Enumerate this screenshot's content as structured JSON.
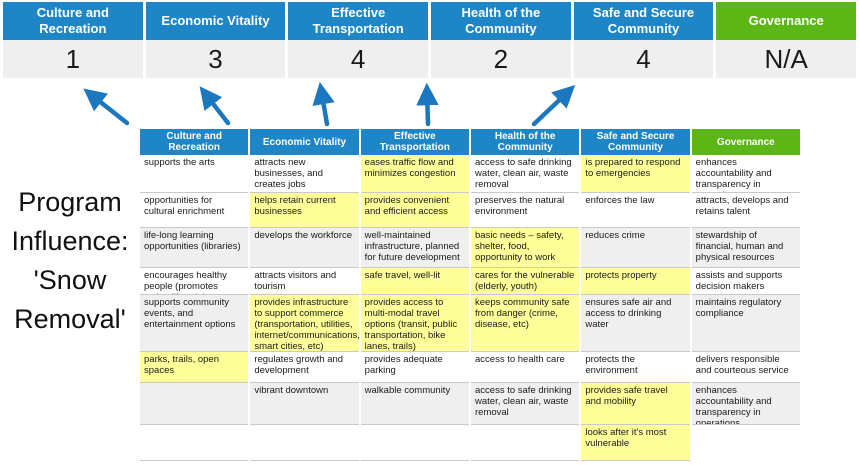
{
  "program_influence_label": "Program\nInfluence:\n'Snow\nRemoval'",
  "colors": {
    "header_blue": "#1E86C7",
    "header_green": "#5CB616",
    "highlight_yellow": "#FFFF99",
    "row_band_gray": "#EFEFEF",
    "score_row_gray": "#EFEFEF",
    "arrow_blue": "#1B77BE",
    "grid_border_gray": "#C9C9C9"
  },
  "scoreboard": {
    "columns": [
      {
        "label": "Culture and Recreation",
        "score": "1",
        "theme": "blue"
      },
      {
        "label": "Economic Vitality",
        "score": "3",
        "theme": "blue"
      },
      {
        "label": "Effective Transportation",
        "score": "4",
        "theme": "blue"
      },
      {
        "label": "Health of the Community",
        "score": "2",
        "theme": "blue"
      },
      {
        "label": "Safe and Secure Community",
        "score": "4",
        "theme": "blue"
      },
      {
        "label": "Governance",
        "score": "N/A",
        "theme": "green"
      }
    ]
  },
  "matrix": {
    "columns": [
      {
        "header": "Culture and Recreation",
        "theme": "blue",
        "cells": [
          {
            "text": "supports the arts"
          },
          {
            "text": "opportunities for cultural enrichment"
          },
          {
            "text": "life-long learning opportunities (libraries)"
          },
          {
            "text": "encourages healthy people (promotes active lifestyle)"
          },
          {
            "text": "supports community events, and entertainment options"
          },
          {
            "text": "parks, trails, open spaces",
            "highlight": true
          },
          {
            "text": ""
          },
          {
            "text": ""
          }
        ]
      },
      {
        "header": "Economic Vitality",
        "theme": "blue",
        "cells": [
          {
            "text": "attracts new businesses, and creates jobs"
          },
          {
            "text": "helps retain current businesses",
            "highlight": true
          },
          {
            "text": "develops the workforce"
          },
          {
            "text": "attracts visitors and tourism"
          },
          {
            "text": "provides infrastructure to support commerce (transportation, utilities, internet/communications, smart cities, etc)",
            "highlight": true
          },
          {
            "text": "regulates growth and development"
          },
          {
            "text": "vibrant downtown"
          },
          {
            "text": ""
          }
        ]
      },
      {
        "header": "Effective Transportation",
        "theme": "blue",
        "cells": [
          {
            "text": "eases traffic flow and minimizes congestion",
            "highlight": true
          },
          {
            "text": "provides convenient and efficient access",
            "highlight": true
          },
          {
            "text": "well-maintained infrastructure, planned for future development"
          },
          {
            "text": "safe travel, well-lit",
            "highlight": true
          },
          {
            "text": "provides access to multi-modal travel options (transit, public transportation, bike lanes, trails)",
            "highlight": true
          },
          {
            "text": "provides adequate parking"
          },
          {
            "text": "walkable community"
          },
          {
            "text": ""
          }
        ]
      },
      {
        "header": "Health of the Community",
        "theme": "blue",
        "cells": [
          {
            "text": "access to safe drinking water, clean air, waste removal"
          },
          {
            "text": "preserves the natural environment"
          },
          {
            "text": "basic needs – safety, shelter, food, opportunity to work",
            "highlight": true
          },
          {
            "text": "cares for the vulnerable (elderly, youth)",
            "highlight": true
          },
          {
            "text": "keeps community safe from danger (crime, disease, etc)",
            "highlight": true
          },
          {
            "text": "access to health care"
          },
          {
            "text": "access to safe drinking water, clean air, waste removal"
          },
          {
            "text": ""
          }
        ]
      },
      {
        "header": "Safe and Secure Community",
        "theme": "blue",
        "cells": [
          {
            "text": "is prepared to respond to emergencies",
            "highlight": true
          },
          {
            "text": "enforces the law"
          },
          {
            "text": "reduces crime"
          },
          {
            "text": "protects property",
            "highlight": true
          },
          {
            "text": "ensures safe air and access to drinking water"
          },
          {
            "text": "protects the environment"
          },
          {
            "text": "provides safe travel and mobility",
            "highlight": true
          },
          {
            "text": "looks after it's most vulnerable",
            "highlight": true
          }
        ]
      },
      {
        "header": "Governance",
        "theme": "green",
        "cells": [
          {
            "text": "enhances accountability and transparency in operations"
          },
          {
            "text": "attracts, develops and retains talent"
          },
          {
            "text": "stewardship of financial, human and physical resources"
          },
          {
            "text": "assists and supports decision makers"
          },
          {
            "text": "maintains regulatory compliance"
          },
          {
            "text": "delivers responsible and courteous service"
          },
          {
            "text": "enhances accountability and transparency in operations"
          },
          {
            "text": "",
            "ghost": true
          }
        ]
      }
    ]
  }
}
